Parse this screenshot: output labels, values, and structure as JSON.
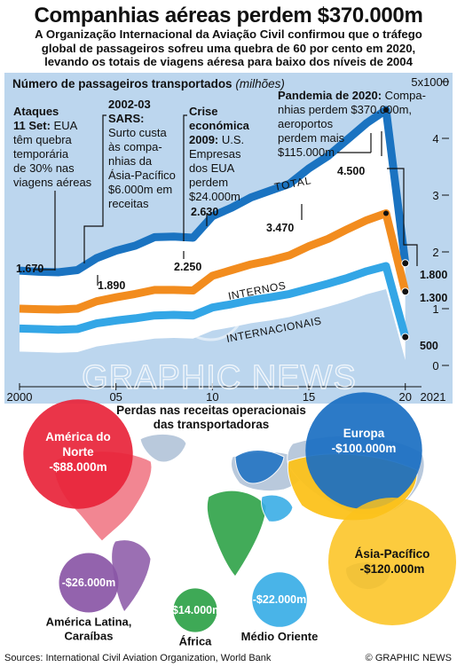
{
  "title": "Companhias aéreas perdem $370.000m",
  "subtitle": [
    "A Organização Internacional da Aviação Civil confirmou que o tráfego",
    "global de passageiros sofreu uma quebra de 60 por cento em 2020,",
    "levando os totais de viagens aéresa para baixo dos níveis de 2004"
  ],
  "colors": {
    "panel_bg": "#bcd6ee",
    "total": "#1a73c1",
    "domestic": "#f28c1e",
    "international": "#33a6e6",
    "north_america": "#e8243a",
    "europe": "#1a6fc2",
    "asia_pacific": "#fcc21c",
    "latin_america": "#8a56a6",
    "africa": "#2ea248",
    "middle_east": "#3aaee6",
    "land": "#b9c9dc"
  },
  "chart_data": [
    {
      "type": "line",
      "title": "Número de passageiros transportados",
      "title_unit": "(milhões)",
      "x": [
        2000,
        2001,
        2002,
        2003,
        2004,
        2005,
        2006,
        2007,
        2008,
        2009,
        2010,
        2011,
        2012,
        2013,
        2014,
        2015,
        2016,
        2017,
        2018,
        2019,
        2020
      ],
      "xticks": [
        "2000",
        "05",
        "10",
        "15",
        "20",
        "2021"
      ],
      "xlim": [
        2000,
        2021.3
      ],
      "ylim": [
        0,
        5000
      ],
      "yticks": [
        "0",
        "1",
        "2",
        "3",
        "4",
        "5x1000"
      ],
      "grid": false,
      "series": [
        {
          "name": "TOTAL",
          "values": [
            1670,
            1650,
            1640,
            1680,
            1890,
            2020,
            2110,
            2260,
            2270,
            2250,
            2630,
            2780,
            2960,
            3080,
            3200,
            3470,
            3690,
            3980,
            4270,
            4500,
            1800
          ]
        },
        {
          "name": "INTERNOS",
          "values": [
            1000,
            990,
            985,
            1000,
            1130,
            1200,
            1260,
            1330,
            1330,
            1320,
            1580,
            1680,
            1780,
            1850,
            1940,
            2100,
            2230,
            2400,
            2560,
            2680,
            1300
          ]
        },
        {
          "name": "INTERNACIONAIS",
          "values": [
            650,
            640,
            630,
            640,
            740,
            790,
            830,
            880,
            890,
            880,
            1020,
            1080,
            1150,
            1200,
            1260,
            1350,
            1440,
            1540,
            1660,
            1750,
            500
          ]
        }
      ],
      "data_labels": [
        "1.670",
        "1.890",
        "2.250",
        "2.630",
        "3.470",
        "4.500",
        "1.800",
        "1.300",
        "500"
      ],
      "annotations": [
        {
          "title": "Ataques 11 Set:",
          "text": "EUA têm quebra temporária de 30% nas viagens aéreas"
        },
        {
          "title": "2002-03 SARS:",
          "text": "Surto custa às companhias da Ásia-Pacífico $6.000m em receitas"
        },
        {
          "title": "Crise económica 2009:",
          "text": "U.S. Empresas dos EUA perdem $24.000m"
        },
        {
          "title": "Pandemia de 2020:",
          "text": "Companhias perdem $370.000m, aeroportos perdem mais $115.000m"
        }
      ]
    },
    {
      "type": "bubble",
      "title": "Perdas nas receitas operacionais das transportadoras",
      "regions": [
        {
          "name": "América do Norte",
          "value": "-$88.000m",
          "amount": 88000
        },
        {
          "name": "Europa",
          "value": "-$100.000m",
          "amount": 100000
        },
        {
          "name": "Ásia-Pacífico",
          "value": "-$120.000m",
          "amount": 120000
        },
        {
          "name": "América Latina, Caraíbas",
          "value": "-$26.000m",
          "amount": 26000
        },
        {
          "name": "África",
          "value": "-$14.000m",
          "amount": 14000
        },
        {
          "name": "Médio Oriente",
          "value": "-$22.000m",
          "amount": 22000
        }
      ]
    }
  ],
  "watermark": "GRAPHIC NEWS",
  "footer": {
    "sources": "Sources: International Civil Aviation Organization, World Bank",
    "copyright": "© GRAPHIC NEWS"
  }
}
